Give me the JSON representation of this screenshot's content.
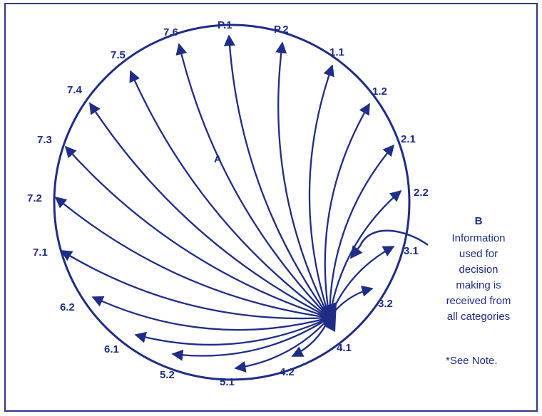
{
  "center_label": "A",
  "node_labels": [
    {
      "id": "P.1",
      "text": "P.1"
    },
    {
      "id": "P.2",
      "text": "P.2"
    },
    {
      "id": "1.1",
      "text": "1.1"
    },
    {
      "id": "1.2",
      "text": "1.2"
    },
    {
      "id": "2.1",
      "text": "2.1"
    },
    {
      "id": "2.2",
      "text": "2.2"
    },
    {
      "id": "3.1",
      "text": "3.1"
    },
    {
      "id": "3.2",
      "text": "3.2"
    },
    {
      "id": "4.1",
      "text": "4.1"
    },
    {
      "id": "4.2",
      "text": "4.2"
    },
    {
      "id": "5.1",
      "text": "5.1"
    },
    {
      "id": "5.2",
      "text": "5.2"
    },
    {
      "id": "6.1",
      "text": "6.1"
    },
    {
      "id": "6.2",
      "text": "6.2"
    },
    {
      "id": "7.1",
      "text": "7.1"
    },
    {
      "id": "7.2",
      "text": "7.2"
    },
    {
      "id": "7.3",
      "text": "7.3"
    },
    {
      "id": "7.4",
      "text": "7.4"
    },
    {
      "id": "7.5",
      "text": "7.5"
    },
    {
      "id": "7.6",
      "text": "7.6"
    }
  ],
  "side_note": {
    "label": "B",
    "lines": [
      "Information",
      "used for",
      "decision",
      "making is",
      "received from",
      "all categories"
    ]
  },
  "see_note": "*See Note.",
  "colors": {
    "ink": "#1f2d86",
    "frame": "#2b3a8c"
  }
}
